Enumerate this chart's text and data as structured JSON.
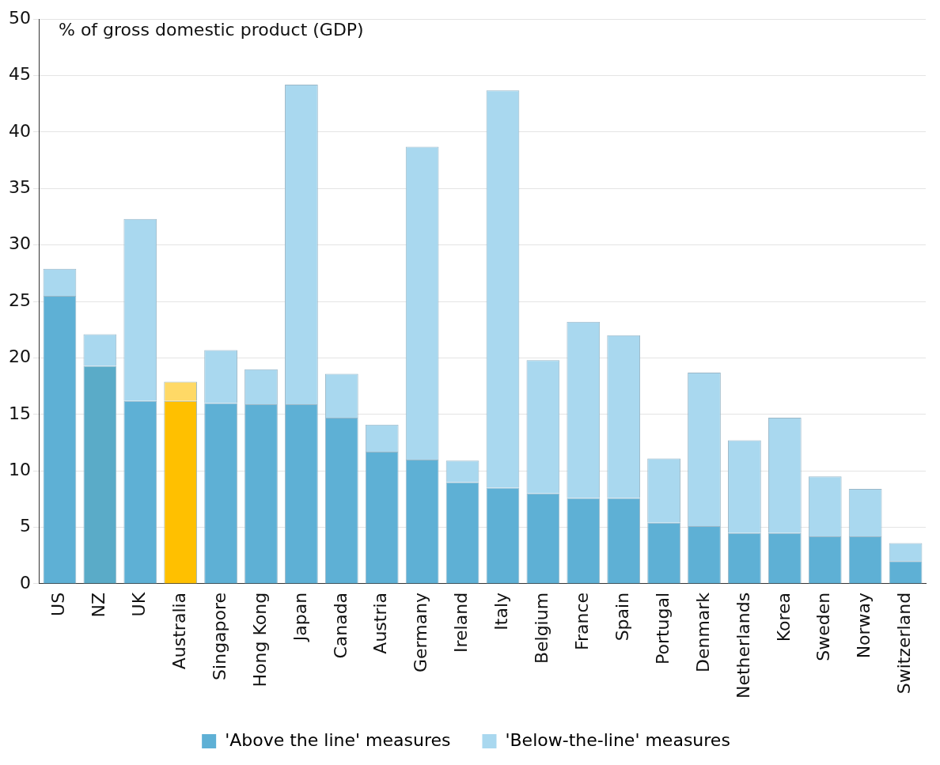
{
  "chart_data": {
    "type": "bar",
    "stacked": true,
    "ylabel": "% of gross domestic product (GDP)",
    "categories": [
      "US",
      "NZ",
      "UK",
      "Australia",
      "Singapore",
      "Hong Kong",
      "Japan",
      "Canada",
      "Austria",
      "Germany",
      "Ireland",
      "Italy",
      "Belgium",
      "France",
      "Spain",
      "Portugal",
      "Denmark",
      "Netherlands",
      "Korea",
      "Sweden",
      "Norway",
      "Switzerland"
    ],
    "series": [
      {
        "name": "'Above the line' measures",
        "color": "#5eb0d5",
        "colors": [
          "#5eb0d5",
          "#5aabc8",
          "#5eb0d5",
          "#ffc000",
          "#5eb0d5",
          "#5eb0d5",
          "#5eb0d5",
          "#5eb0d5",
          "#5eb0d5",
          "#5eb0d5",
          "#5eb0d5",
          "#5eb0d5",
          "#5eb0d5",
          "#5eb0d5",
          "#5eb0d5",
          "#5eb0d5",
          "#5eb0d5",
          "#5eb0d5",
          "#5eb0d5",
          "#5eb0d5",
          "#5eb0d5",
          "#5eb0d5"
        ],
        "values": [
          25.5,
          19.3,
          16.2,
          16.2,
          16.0,
          15.9,
          15.9,
          14.7,
          11.7,
          11.0,
          9.0,
          8.5,
          8.0,
          7.6,
          7.6,
          5.4,
          5.1,
          4.5,
          4.5,
          4.2,
          4.2,
          2.0
        ]
      },
      {
        "name": "'Below-the-line' measures",
        "color": "#a9d8ef",
        "colors": [
          "#a9d8ef",
          "#a9d8ef",
          "#a9d8ef",
          "#ffd966",
          "#a9d8ef",
          "#a9d8ef",
          "#a9d8ef",
          "#a9d8ef",
          "#a9d8ef",
          "#a9d8ef",
          "#a9d8ef",
          "#a9d8ef",
          "#a9d8ef",
          "#a9d8ef",
          "#a9d8ef",
          "#a9d8ef",
          "#a9d8ef",
          "#a9d8ef",
          "#a9d8ef",
          "#a9d8ef",
          "#a9d8ef",
          "#a9d8ef"
        ],
        "values": [
          2.4,
          2.8,
          16.1,
          1.7,
          4.7,
          3.1,
          28.3,
          3.9,
          2.4,
          27.7,
          1.9,
          35.2,
          11.8,
          15.6,
          14.4,
          5.7,
          13.6,
          8.2,
          10.2,
          5.3,
          4.2,
          1.6
        ]
      }
    ],
    "ylim": [
      0,
      50
    ],
    "yticks": [
      0,
      5,
      10,
      15,
      20,
      25,
      30,
      35,
      40,
      45,
      50
    ],
    "grid": "y",
    "legend": "bottom"
  }
}
